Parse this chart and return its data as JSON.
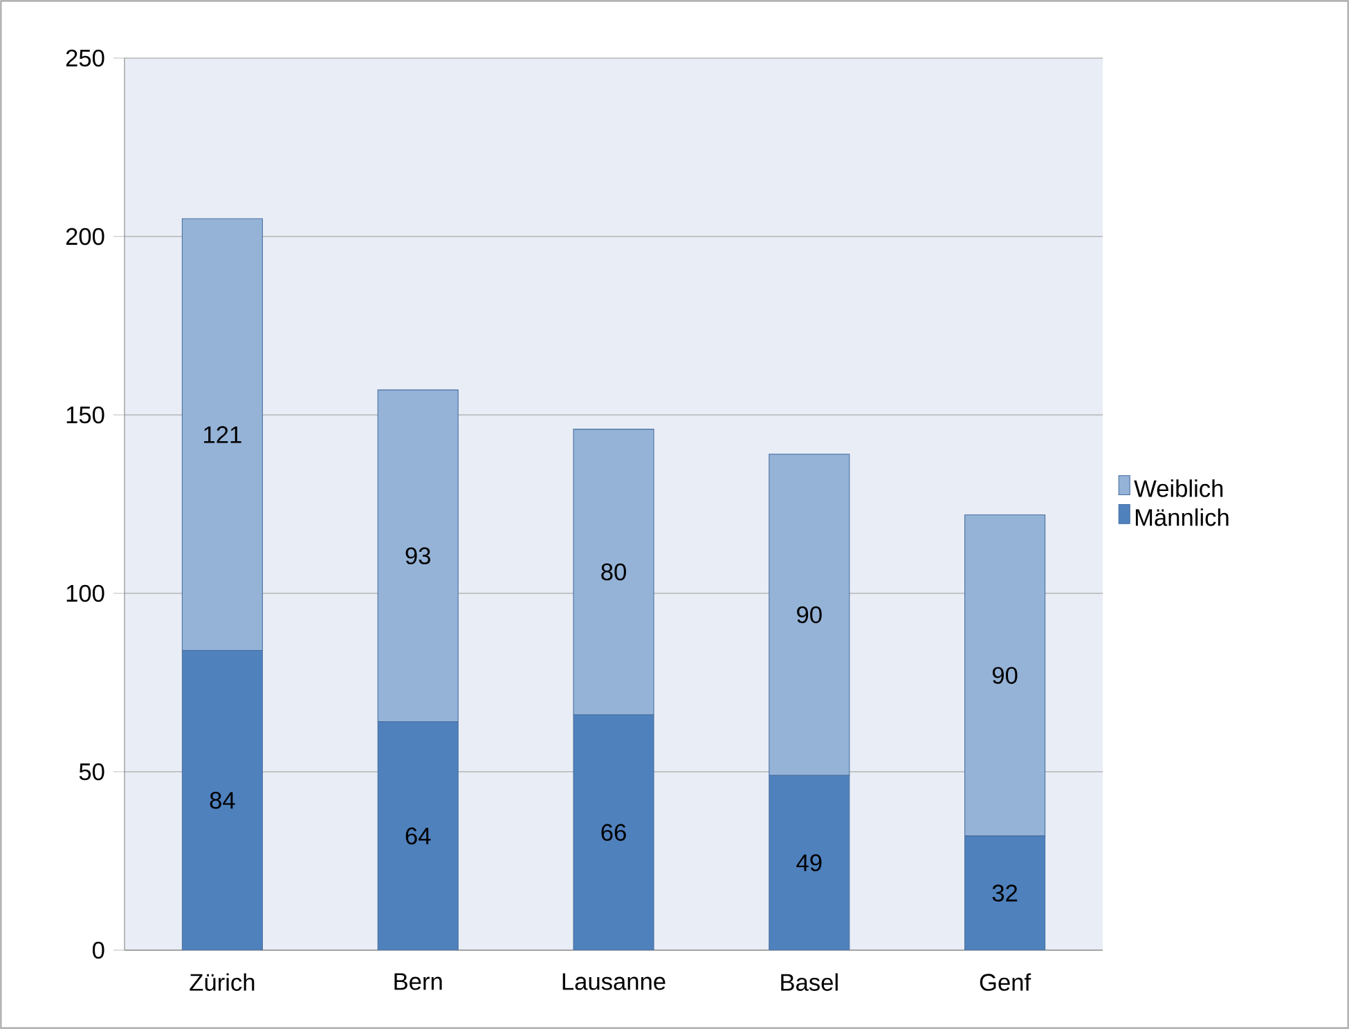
{
  "chart_data": {
    "type": "bar",
    "stacked": true,
    "categories": [
      "Zürich",
      "Bern",
      "Lausanne",
      "Basel",
      "Genf"
    ],
    "series": [
      {
        "name": "Männlich",
        "color": "#4f81bd",
        "values": [
          84,
          64,
          66,
          49,
          32
        ]
      },
      {
        "name": "Weiblich",
        "color": "#95b3d7",
        "values": [
          121,
          93,
          80,
          90,
          90
        ]
      }
    ],
    "ylim": [
      0,
      250
    ],
    "yticks": [
      0,
      50,
      100,
      150,
      200,
      250
    ],
    "grid": "y",
    "legend": "right",
    "data_labels": true
  }
}
